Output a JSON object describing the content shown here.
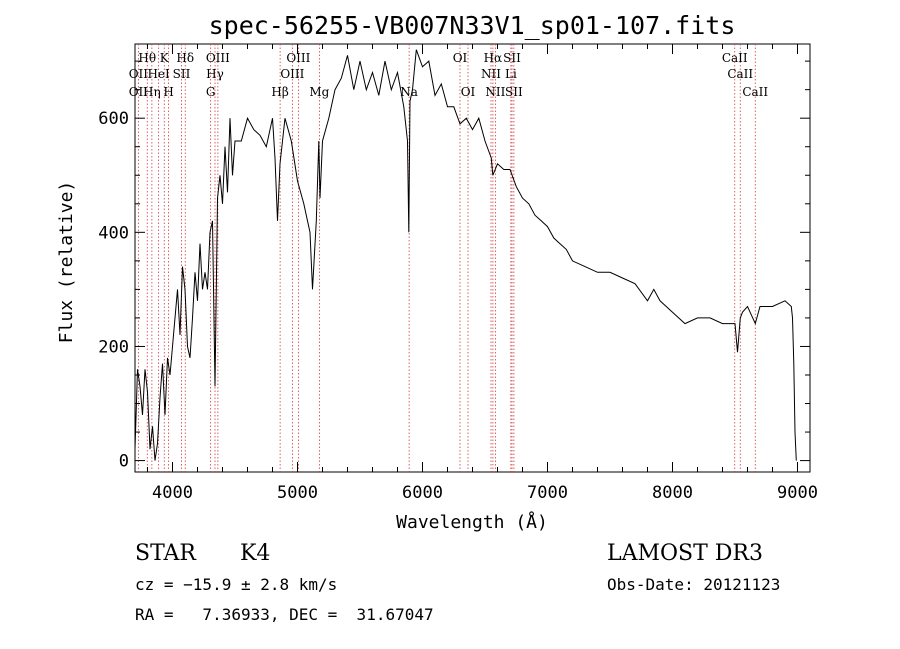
{
  "chart_data": {
    "type": "line",
    "title": "spec-56255-VB007N33V1_sp01-107.fits",
    "xlabel": "Wavelength (Å)",
    "ylabel": "Flux (relative)",
    "xlim": [
      3700,
      9100
    ],
    "ylim": [
      -20,
      730
    ],
    "xticks": [
      4000,
      5000,
      6000,
      7000,
      8000,
      9000
    ],
    "yticks": [
      0,
      200,
      400,
      600
    ],
    "grid": false,
    "series": [
      {
        "name": "flux",
        "x": [
          3700,
          3720,
          3740,
          3760,
          3780,
          3800,
          3820,
          3840,
          3860,
          3880,
          3900,
          3920,
          3940,
          3960,
          3980,
          4000,
          4020,
          4040,
          4060,
          4080,
          4100,
          4120,
          4140,
          4160,
          4180,
          4200,
          4220,
          4240,
          4260,
          4280,
          4300,
          4320,
          4340,
          4360,
          4380,
          4400,
          4420,
          4440,
          4460,
          4480,
          4500,
          4550,
          4600,
          4650,
          4700,
          4750,
          4800,
          4820,
          4840,
          4860,
          4880,
          4900,
          4950,
          5000,
          5050,
          5080,
          5100,
          5120,
          5150,
          5170,
          5180,
          5200,
          5250,
          5300,
          5350,
          5400,
          5450,
          5500,
          5550,
          5600,
          5650,
          5700,
          5750,
          5800,
          5850,
          5880,
          5890,
          5900,
          5920,
          5950,
          6000,
          6050,
          6100,
          6150,
          6200,
          6250,
          6300,
          6350,
          6400,
          6450,
          6500,
          6550,
          6562,
          6600,
          6650,
          6700,
          6750,
          6800,
          6850,
          6900,
          6950,
          7000,
          7050,
          7100,
          7150,
          7200,
          7300,
          7400,
          7500,
          7600,
          7700,
          7800,
          7850,
          7900,
          8000,
          8100,
          8200,
          8300,
          8400,
          8500,
          8520,
          8542,
          8560,
          8600,
          8662,
          8700,
          8800,
          8900,
          8950,
          8960,
          8970,
          8980,
          8990
        ],
        "values": [
          20,
          160,
          130,
          80,
          160,
          120,
          20,
          60,
          0,
          30,
          110,
          170,
          80,
          180,
          150,
          200,
          250,
          300,
          220,
          340,
          300,
          200,
          180,
          250,
          330,
          280,
          380,
          300,
          330,
          300,
          400,
          420,
          130,
          460,
          500,
          450,
          550,
          470,
          600,
          500,
          560,
          560,
          600,
          580,
          570,
          550,
          600,
          530,
          420,
          520,
          560,
          600,
          560,
          490,
          450,
          420,
          400,
          300,
          420,
          560,
          460,
          560,
          600,
          650,
          670,
          710,
          650,
          700,
          650,
          680,
          640,
          700,
          650,
          680,
          620,
          560,
          400,
          630,
          650,
          720,
          690,
          700,
          640,
          660,
          620,
          620,
          590,
          600,
          580,
          600,
          560,
          530,
          500,
          520,
          510,
          510,
          480,
          460,
          450,
          430,
          420,
          410,
          390,
          380,
          370,
          350,
          340,
          330,
          330,
          320,
          310,
          280,
          300,
          280,
          260,
          240,
          250,
          250,
          240,
          240,
          190,
          250,
          260,
          270,
          240,
          270,
          270,
          280,
          270,
          250,
          170,
          50,
          0
        ]
      }
    ],
    "lines": [
      {
        "name": "Hθ",
        "wl": 3798
      },
      {
        "name": "OII",
        "wl": 3727
      },
      {
        "name": "Hη",
        "wl": 3835
      },
      {
        "name": "HeI",
        "wl": 3889
      },
      {
        "name": "K",
        "wl": 3934
      },
      {
        "name": "H",
        "wl": 3969
      },
      {
        "name": "SII",
        "wl": 4072
      },
      {
        "name": "Hδ",
        "wl": 4102
      },
      {
        "name": "OIII",
        "wl": 4363
      },
      {
        "name": "Hγ",
        "wl": 4340
      },
      {
        "name": "G",
        "wl": 4305
      },
      {
        "name": "Hβ",
        "wl": 4861
      },
      {
        "name": "OIII",
        "wl": 4959
      },
      {
        "name": "OIII",
        "wl": 5007
      },
      {
        "name": "Mg",
        "wl": 5175
      },
      {
        "name": "Na",
        "wl": 5893
      },
      {
        "name": "OI",
        "wl": 6300
      },
      {
        "name": "OI",
        "wl": 6364
      },
      {
        "name": "NII",
        "wl": 6548
      },
      {
        "name": "Hα",
        "wl": 6563
      },
      {
        "name": "NII",
        "wl": 6583
      },
      {
        "name": "Li",
        "wl": 6707
      },
      {
        "name": "SII",
        "wl": 6716
      },
      {
        "name": "SII",
        "wl": 6731
      },
      {
        "name": "CaII",
        "wl": 8498
      },
      {
        "name": "CaII",
        "wl": 8542
      },
      {
        "name": "CaII",
        "wl": 8662
      }
    ]
  },
  "lineLabels": {
    "row1": [
      {
        "text": "Hθ",
        "wl": 3798
      },
      {
        "text": "K",
        "wl": 3934
      },
      {
        "text": "Hδ",
        "wl": 4102
      },
      {
        "text": "OIII",
        "wl": 4363
      },
      {
        "text": "OIII",
        "wl": 5007
      },
      {
        "text": "OI",
        "wl": 6300
      },
      {
        "text": "Hα",
        "wl": 6563
      },
      {
        "text": "SII",
        "wl": 6716
      },
      {
        "text": "CaII",
        "wl": 8498
      }
    ],
    "row2": [
      {
        "text": "OII",
        "wl": 3727
      },
      {
        "text": "HeI",
        "wl": 3889
      },
      {
        "text": "SII",
        "wl": 4072
      },
      {
        "text": "Hγ",
        "wl": 4340
      },
      {
        "text": "OIII",
        "wl": 4959
      },
      {
        "text": "NII",
        "wl": 6548
      },
      {
        "text": "Li",
        "wl": 6707
      },
      {
        "text": "CaII",
        "wl": 8542
      }
    ],
    "row3": [
      {
        "text": "OII",
        "wl": 3727
      },
      {
        "text": "Hη",
        "wl": 3835
      },
      {
        "text": "H",
        "wl": 3969
      },
      {
        "text": "G",
        "wl": 4305
      },
      {
        "text": "Hβ",
        "wl": 4861
      },
      {
        "text": "Mg",
        "wl": 5175
      },
      {
        "text": "Na",
        "wl": 5893
      },
      {
        "text": "OI",
        "wl": 6364
      },
      {
        "text": "NII",
        "wl": 6583
      },
      {
        "text": "SII",
        "wl": 6731
      },
      {
        "text": "CaII",
        "wl": 8662
      }
    ]
  },
  "info": {
    "class_label": "STAR",
    "subclass": "K4",
    "survey": "LAMOST DR3",
    "velocity": "cz = −15.9 ± 2.8 km/s",
    "obs_date": "Obs-Date: 20121123",
    "coords": "RA =   7.36933, DEC =  31.67047"
  }
}
